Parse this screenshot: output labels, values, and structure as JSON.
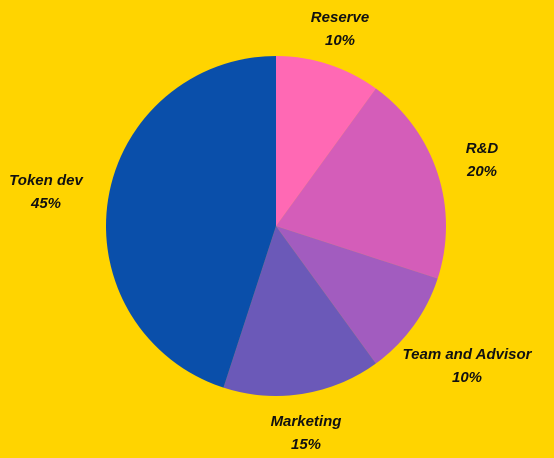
{
  "chart_data": {
    "type": "pie",
    "start_angle_deg": 0,
    "direction": "clockwise",
    "background": "#FFD400",
    "slices": [
      {
        "label": "Reserve",
        "value": 10,
        "value_label": "10%",
        "color": "#FF69B4"
      },
      {
        "label": "R&D",
        "value": 20,
        "value_label": "20%",
        "color": "#D45DB9"
      },
      {
        "label": "Team and Advisor",
        "value": 10,
        "value_label": "10%",
        "color": "#A25CBF"
      },
      {
        "label": "Marketing",
        "value": 15,
        "value_label": "15%",
        "color": "#6B59B8"
      },
      {
        "label": "Token dev",
        "value": 45,
        "value_label": "45%",
        "color": "#0A4FAA"
      }
    ]
  }
}
